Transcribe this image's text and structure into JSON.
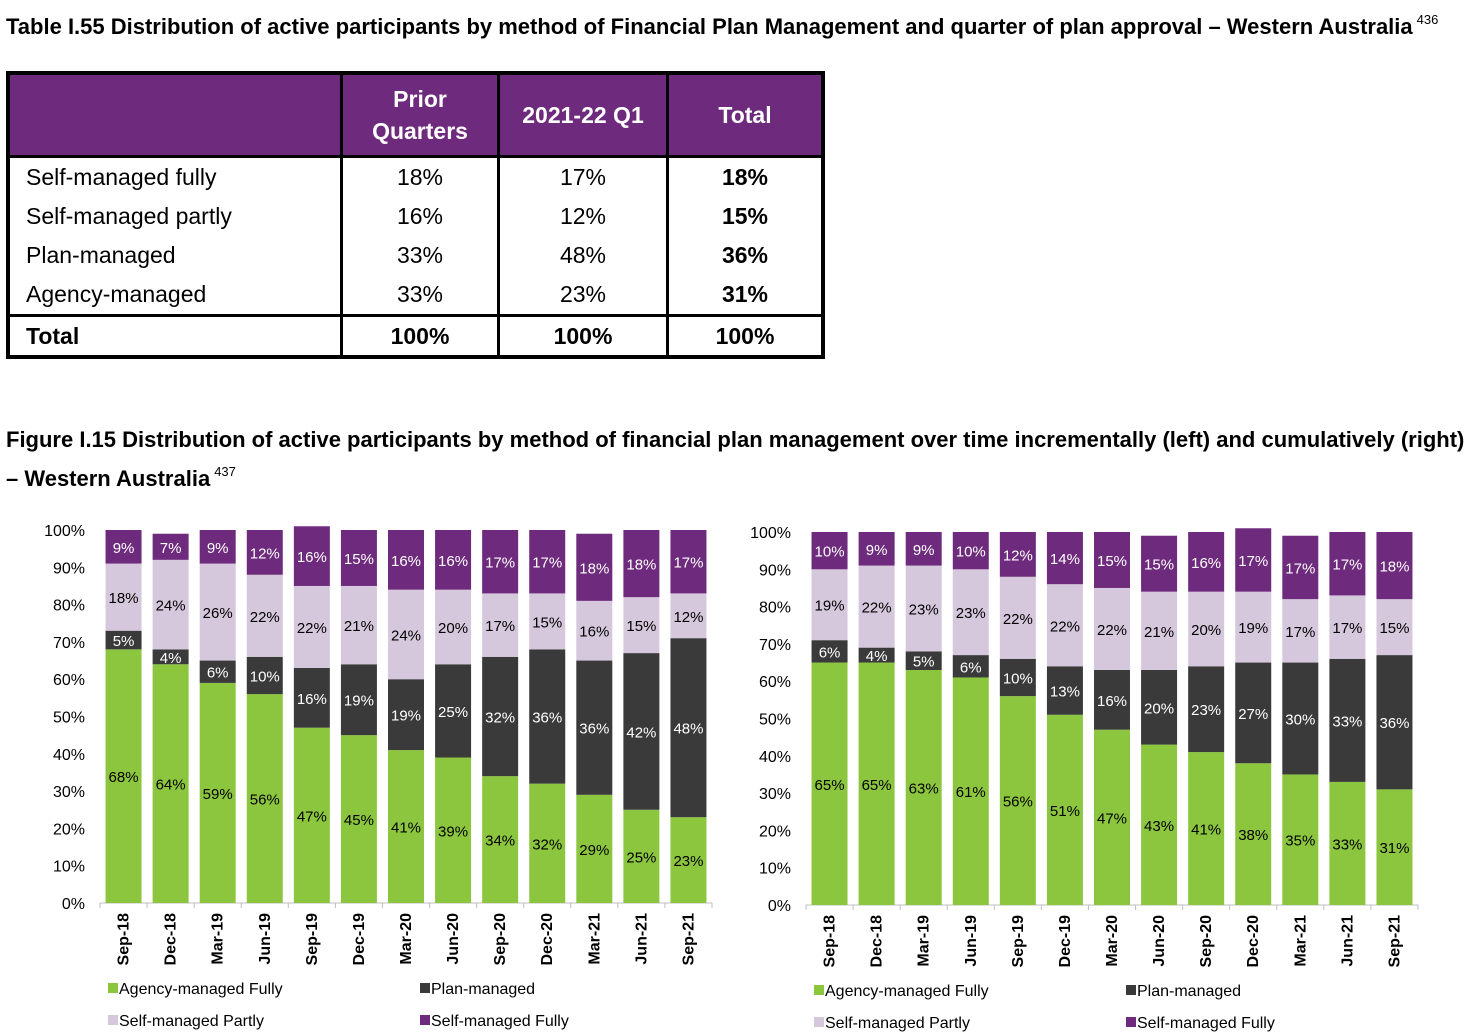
{
  "table": {
    "caption": "Table I.55 Distribution of active participants by method of Financial Plan Management and quarter of plan approval – Western Australia",
    "footnote": "436",
    "headers": [
      "",
      "Prior Quarters",
      "2021-22 Q1",
      "Total"
    ],
    "rows": [
      [
        "Self-managed fully",
        "18%",
        "17%",
        "18%"
      ],
      [
        "Self-managed partly",
        "16%",
        "12%",
        "15%"
      ],
      [
        "Plan-managed",
        "33%",
        "48%",
        "36%"
      ],
      [
        "Agency-managed",
        "33%",
        "23%",
        "31%"
      ],
      [
        "Total",
        "100%",
        "100%",
        "100%"
      ]
    ]
  },
  "figure": {
    "caption": "Figure I.15 Distribution of active participants by method of financial plan management over time incrementally (left) and cumulatively (right) – Western Australia",
    "footnote": "437"
  },
  "colors": {
    "agency": "#8cc63f",
    "plan": "#3a3a3a",
    "self_partly": "#d6c8dc",
    "self_fully": "#6e2a7c",
    "header_purple": "#6e2a7c"
  },
  "chart_data": [
    {
      "type": "bar",
      "stacked": true,
      "categories": [
        "Sep-18",
        "Dec-18",
        "Mar-19",
        "Jun-19",
        "Sep-19",
        "Dec-19",
        "Mar-20",
        "Jun-20",
        "Sep-20",
        "Dec-20",
        "Mar-21",
        "Jun-21",
        "Sep-21"
      ],
      "yticks": [
        "0%",
        "10%",
        "20%",
        "30%",
        "40%",
        "50%",
        "60%",
        "70%",
        "80%",
        "90%",
        "100%"
      ],
      "ylim": [
        0,
        100
      ],
      "legend_position": "bottom",
      "series": [
        {
          "name": "Agency-managed Fully",
          "values": [
            68,
            64,
            59,
            56,
            47,
            45,
            41,
            39,
            34,
            32,
            29,
            25,
            23
          ]
        },
        {
          "name": "Plan-managed",
          "values": [
            5,
            4,
            6,
            10,
            16,
            19,
            19,
            25,
            32,
            36,
            36,
            42,
            48
          ]
        },
        {
          "name": "Self-managed Partly",
          "values": [
            18,
            24,
            26,
            22,
            22,
            21,
            24,
            20,
            17,
            15,
            16,
            15,
            12
          ]
        },
        {
          "name": "Self-managed Fully",
          "values": [
            9,
            7,
            9,
            12,
            16,
            15,
            16,
            16,
            17,
            17,
            18,
            18,
            17
          ]
        }
      ]
    },
    {
      "type": "bar",
      "stacked": true,
      "categories": [
        "Sep-18",
        "Dec-18",
        "Mar-19",
        "Jun-19",
        "Sep-19",
        "Dec-19",
        "Mar-20",
        "Jun-20",
        "Sep-20",
        "Dec-20",
        "Mar-21",
        "Jun-21",
        "Sep-21"
      ],
      "yticks": [
        "0%",
        "10%",
        "20%",
        "30%",
        "40%",
        "50%",
        "60%",
        "70%",
        "80%",
        "90%",
        "100%"
      ],
      "ylim": [
        0,
        100
      ],
      "legend_position": "bottom",
      "series": [
        {
          "name": "Agency-managed Fully",
          "values": [
            65,
            65,
            63,
            61,
            56,
            51,
            47,
            43,
            41,
            38,
            35,
            33,
            31
          ]
        },
        {
          "name": "Plan-managed",
          "values": [
            6,
            4,
            5,
            6,
            10,
            13,
            16,
            20,
            23,
            27,
            30,
            33,
            36
          ]
        },
        {
          "name": "Self-managed Partly",
          "values": [
            19,
            22,
            23,
            23,
            22,
            22,
            22,
            21,
            20,
            19,
            17,
            17,
            15
          ]
        },
        {
          "name": "Self-managed Fully",
          "values": [
            10,
            9,
            9,
            10,
            12,
            14,
            15,
            15,
            16,
            17,
            17,
            17,
            18
          ]
        }
      ]
    }
  ]
}
